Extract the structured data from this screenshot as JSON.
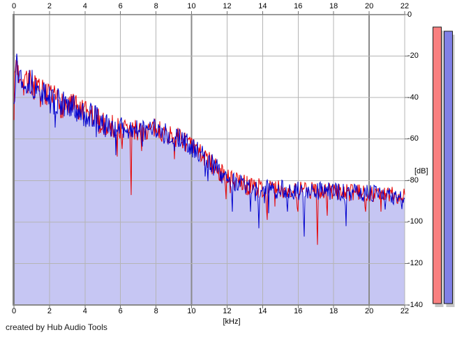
{
  "window": {
    "background": "#ffffff"
  },
  "footer": {
    "credit": "created by Hub Audio Tools"
  },
  "chart_data": {
    "type": "area",
    "title": "",
    "xlabel": "[kHz]",
    "ylabel": "[dB]",
    "xlim": [
      0,
      22
    ],
    "ylim": [
      -140,
      0
    ],
    "x_ticks": [
      0,
      2,
      4,
      6,
      8,
      10,
      12,
      14,
      16,
      18,
      20,
      22
    ],
    "y_ticks": [
      0,
      -20,
      -40,
      -60,
      -80,
      -100,
      -120,
      -140
    ],
    "grid": true,
    "legend": "none",
    "style": {
      "background": "#ffffff",
      "fill": "#c6c6f3",
      "grid_minor": "#b4b4b4",
      "grid_major": "#8a8a8a",
      "border_left": "#808080",
      "border_top": "#9a9a9a",
      "border_bottom": "#8a8a8a",
      "tick_color": "#707070",
      "text_color": "#000000",
      "shadow": "#c6c6c6",
      "meter_outline": "#1a1a1a"
    },
    "noise_amplitude_db": [
      [
        0,
        7
      ],
      [
        1,
        7
      ],
      [
        3,
        7
      ],
      [
        5,
        6
      ],
      [
        8,
        5
      ],
      [
        10,
        5
      ],
      [
        12,
        5
      ],
      [
        16,
        4.5
      ],
      [
        22,
        4
      ]
    ],
    "series": [
      {
        "name": "spectrum-red",
        "color": "#e60000",
        "seed": 7,
        "envelope": [
          [
            0,
            -44
          ],
          [
            0.06,
            -30
          ],
          [
            0.12,
            -21
          ],
          [
            0.25,
            -29
          ],
          [
            0.4,
            -28
          ],
          [
            0.55,
            -33
          ],
          [
            0.7,
            -30
          ],
          [
            0.9,
            -33
          ],
          [
            1.1,
            -34
          ],
          [
            1.3,
            -37
          ],
          [
            1.6,
            -38
          ],
          [
            2.0,
            -41
          ],
          [
            2.4,
            -41
          ],
          [
            2.8,
            -44
          ],
          [
            3.2,
            -44
          ],
          [
            3.6,
            -46
          ],
          [
            4.0,
            -48
          ],
          [
            4.5,
            -49
          ],
          [
            5.0,
            -53
          ],
          [
            5.5,
            -54
          ],
          [
            6.0,
            -55
          ],
          [
            6.5,
            -55
          ],
          [
            7.0,
            -56
          ],
          [
            7.5,
            -56
          ],
          [
            8.0,
            -55
          ],
          [
            8.5,
            -57
          ],
          [
            9.0,
            -59
          ],
          [
            9.5,
            -60
          ],
          [
            10.0,
            -64
          ],
          [
            10.5,
            -67
          ],
          [
            11.0,
            -71
          ],
          [
            11.5,
            -75
          ],
          [
            12.0,
            -79
          ],
          [
            12.5,
            -81
          ],
          [
            13.0,
            -82
          ],
          [
            13.5,
            -83
          ],
          [
            14.0,
            -84
          ],
          [
            15.0,
            -84
          ],
          [
            16.0,
            -85
          ],
          [
            17.0,
            -85
          ],
          [
            18.0,
            -85
          ],
          [
            19.0,
            -86
          ],
          [
            20.0,
            -86
          ],
          [
            21.0,
            -87
          ],
          [
            22.0,
            -87
          ]
        ],
        "notches": [
          [
            6.6,
            -87
          ],
          [
            11.95,
            -89
          ],
          [
            14.25,
            -99
          ],
          [
            16.0,
            -95
          ],
          [
            17.1,
            -111
          ],
          [
            17.65,
            -97
          ],
          [
            19.8,
            -95
          ]
        ]
      },
      {
        "name": "spectrum-blue",
        "color": "#0000cd",
        "fill": "#c6c6f3",
        "seed": 13,
        "envelope": [
          [
            0,
            -44
          ],
          [
            0.06,
            -31
          ],
          [
            0.12,
            -22
          ],
          [
            0.25,
            -29
          ],
          [
            0.4,
            -29
          ],
          [
            0.55,
            -33
          ],
          [
            0.7,
            -31
          ],
          [
            0.9,
            -33
          ],
          [
            1.1,
            -34
          ],
          [
            1.3,
            -37
          ],
          [
            1.6,
            -38
          ],
          [
            2.0,
            -41
          ],
          [
            2.4,
            -42
          ],
          [
            2.8,
            -44
          ],
          [
            3.2,
            -44
          ],
          [
            3.6,
            -46
          ],
          [
            4.0,
            -48
          ],
          [
            4.5,
            -49
          ],
          [
            5.0,
            -53
          ],
          [
            5.5,
            -54
          ],
          [
            6.0,
            -55
          ],
          [
            6.5,
            -55
          ],
          [
            7.0,
            -56
          ],
          [
            7.5,
            -56
          ],
          [
            8.0,
            -55
          ],
          [
            8.5,
            -57
          ],
          [
            9.0,
            -59
          ],
          [
            9.5,
            -60
          ],
          [
            10.0,
            -64
          ],
          [
            10.5,
            -67
          ],
          [
            11.0,
            -71
          ],
          [
            11.5,
            -75
          ],
          [
            12.0,
            -79
          ],
          [
            12.5,
            -81
          ],
          [
            13.0,
            -82
          ],
          [
            13.5,
            -83
          ],
          [
            14.0,
            -84
          ],
          [
            15.0,
            -84
          ],
          [
            16.0,
            -85
          ],
          [
            17.0,
            -85
          ],
          [
            18.0,
            -85
          ],
          [
            19.0,
            -86
          ],
          [
            20.0,
            -86
          ],
          [
            21.0,
            -87
          ],
          [
            22.0,
            -87
          ]
        ],
        "notches": [
          [
            12.3,
            -95
          ],
          [
            13.3,
            -95
          ],
          [
            13.8,
            -103
          ],
          [
            15.4,
            -95
          ],
          [
            16.35,
            -107
          ],
          [
            18.7,
            -102
          ],
          [
            20.9,
            -94
          ]
        ]
      }
    ],
    "meters": [
      {
        "name": "red-level-meter",
        "value_db": -6,
        "color": "#f98080"
      },
      {
        "name": "blue-level-meter",
        "value_db": -8,
        "color": "#8080e6"
      }
    ]
  }
}
